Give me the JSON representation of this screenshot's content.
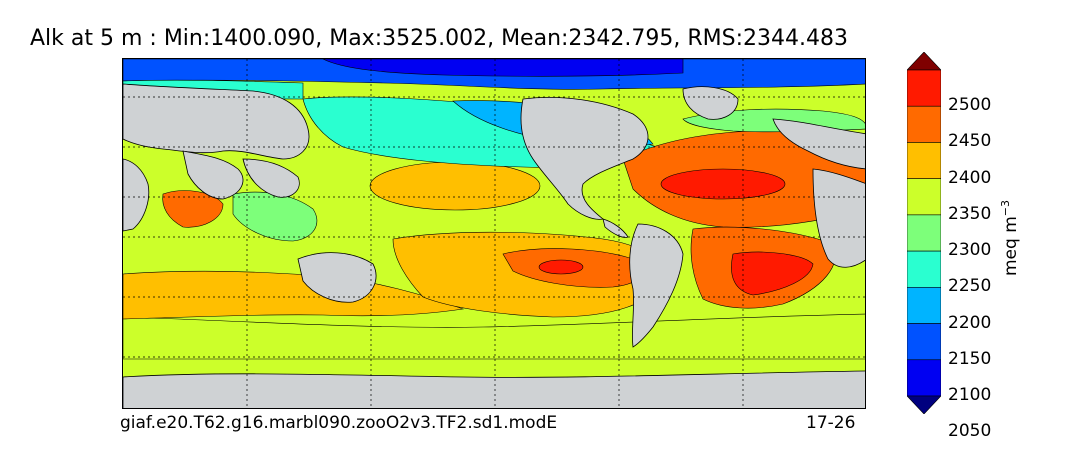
{
  "title": "Alk at 5 m : Min:1400.090, Max:3525.002, Mean:2342.795, RMS:2344.483",
  "caption_left": "giaf.e20.T62.g16.marbl090.zooO2v3.TF2.sd1.modE",
  "caption_right": "17-26",
  "colorbar": {
    "unit_base": "meq m",
    "unit_exp": "−3",
    "tick_labels": [
      "2500",
      "2450",
      "2400",
      "2350",
      "2300",
      "2250",
      "2200",
      "2150",
      "2100",
      "2050"
    ],
    "levels_top_to_bottom": [
      {
        "color": "#7f0000"
      },
      {
        "color": "#ff1a00"
      },
      {
        "color": "#ff6a00"
      },
      {
        "color": "#ffbf00"
      },
      {
        "color": "#ccff2a"
      },
      {
        "color": "#7dff7a"
      },
      {
        "color": "#2affd0"
      },
      {
        "color": "#00b4ff"
      },
      {
        "color": "#0052ff"
      },
      {
        "color": "#0000f2"
      },
      {
        "color": "#00007f"
      }
    ]
  },
  "colors": {
    "land": "#cfd2d4",
    "gridline": "#000000",
    "contour": "#000000"
  }
}
